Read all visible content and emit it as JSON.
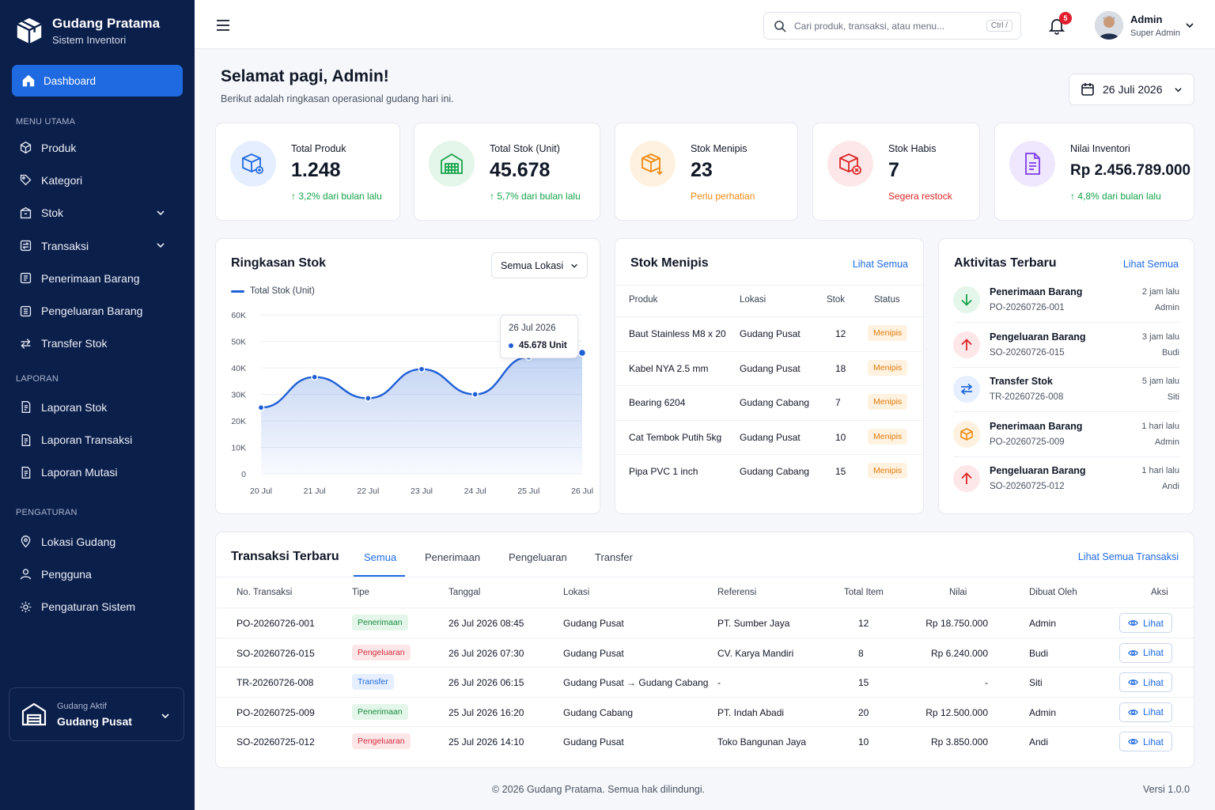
{
  "brand": {
    "title": "Gudang Pratama",
    "subtitle": "Sistem Inventori"
  },
  "sidebar": {
    "dashboard": "Dashboard",
    "sections": {
      "main": "MENU UTAMA",
      "reports": "LAPORAN",
      "settings": "PENGATURAN"
    },
    "main_items": [
      {
        "label": "Produk",
        "icon": "box-icon"
      },
      {
        "label": "Kategori",
        "icon": "tag-icon"
      },
      {
        "label": "Stok",
        "icon": "stock-icon"
      },
      {
        "label": "Transaksi",
        "icon": "transaction-icon"
      },
      {
        "label": "Penerimaan Barang",
        "icon": "inbound-icon"
      },
      {
        "label": "Pengeluaran Barang",
        "icon": "outbound-icon"
      },
      {
        "label": "Transfer Stok",
        "icon": "transfer-icon"
      }
    ],
    "report_items": [
      "Laporan Stok",
      "Laporan Transaksi",
      "Laporan Mutasi"
    ],
    "setting_items": [
      "Lokasi Gudang",
      "Pengguna",
      "Pengaturan Sistem"
    ],
    "active_warehouse_label": "Gudang Aktif",
    "active_warehouse": "Gudang Pusat"
  },
  "topbar": {
    "search_placeholder": "Cari produk, transaksi, atau menu...",
    "search_shortcut": "Ctrl  /",
    "notification_count": "5",
    "user_name": "Admin",
    "user_role": "Super Admin"
  },
  "header": {
    "greeting": "Selamat pagi, Admin!",
    "subtitle": "Berikut adalah ringkasan operasional gudang hari ini.",
    "date": "26 Juli 2026"
  },
  "kpis": [
    {
      "label": "Total Produk",
      "value": "1.248",
      "note": "↑ 3,2% dari bulan lalu",
      "tone": "green"
    },
    {
      "label": "Total Stok (Unit)",
      "value": "45.678",
      "note": "↑ 5,7% dari bulan lalu",
      "tone": "green"
    },
    {
      "label": "Stok Menipis",
      "value": "23",
      "note": "Perlu perhatian",
      "tone": "orange"
    },
    {
      "label": "Stok Habis",
      "value": "7",
      "note": "Segera restock",
      "tone": "red"
    },
    {
      "label": "Nilai Inventori",
      "value": "Rp 2.456.789.000",
      "note": "↑ 4,8% dari bulan lalu",
      "tone": "green"
    }
  ],
  "stock_summary": {
    "title": "Ringkasan Stok",
    "location_select": "Semua Lokasi",
    "legend": "Total Stok (Unit)",
    "tooltip_date": "26 Jul 2026",
    "tooltip_value": "45.678 Unit"
  },
  "chart_data": {
    "type": "area",
    "x": [
      "20 Jul",
      "21 Jul",
      "22 Jul",
      "23 Jul",
      "24 Jul",
      "25 Jul",
      "26 Jul"
    ],
    "series": [
      {
        "name": "Total Stok (Unit)",
        "values": [
          25000,
          36500,
          28500,
          39500,
          30000,
          44000,
          45678
        ]
      }
    ],
    "yticks": [
      "0",
      "10K",
      "20K",
      "30K",
      "40K",
      "50K",
      "60K"
    ],
    "ylim": [
      0,
      60000
    ],
    "color": "#1f5fd6"
  },
  "low_stock": {
    "title": "Stok Menipis",
    "link": "Lihat Semua",
    "headers": [
      "Produk",
      "Lokasi",
      "Stok",
      "Status"
    ],
    "rows": [
      {
        "product": "Baut Stainless M8 x 20",
        "location": "Gudang Pusat",
        "stock": "12",
        "status": "Menipis"
      },
      {
        "product": "Kabel NYA 2.5 mm",
        "location": "Gudang Pusat",
        "stock": "18",
        "status": "Menipis"
      },
      {
        "product": "Bearing 6204",
        "location": "Gudang Cabang",
        "stock": "7",
        "status": "Menipis"
      },
      {
        "product": "Cat Tembok Putih 5kg",
        "location": "Gudang Pusat",
        "stock": "10",
        "status": "Menipis"
      },
      {
        "product": "Pipa PVC 1 inch",
        "location": "Gudang Cabang",
        "stock": "15",
        "status": "Menipis"
      }
    ]
  },
  "activity": {
    "title": "Aktivitas Terbaru",
    "link": "Lihat Semua",
    "items": [
      {
        "title": "Penerimaan Barang",
        "ref": "PO-20260726-001",
        "time": "2 jam lalu",
        "user": "Admin",
        "kind": "in"
      },
      {
        "title": "Pengeluaran Barang",
        "ref": "SO-20260726-015",
        "time": "3 jam lalu",
        "user": "Budi",
        "kind": "out"
      },
      {
        "title": "Transfer Stok",
        "ref": "TR-20260726-008",
        "time": "5 jam lalu",
        "user": "Siti",
        "kind": "transfer"
      },
      {
        "title": "Penerimaan Barang",
        "ref": "PO-20260725-009",
        "time": "1 hari lalu",
        "user": "Admin",
        "kind": "box"
      },
      {
        "title": "Pengeluaran Barang",
        "ref": "SO-20260725-012",
        "time": "1 hari lalu",
        "user": "Andi",
        "kind": "out"
      }
    ]
  },
  "transactions": {
    "title": "Transaksi Terbaru",
    "tabs": [
      "Semua",
      "Penerimaan",
      "Pengeluaran",
      "Transfer"
    ],
    "link": "Lihat Semua Transaksi",
    "headers": [
      "No. Transaksi",
      "Tipe",
      "Tanggal",
      "Lokasi",
      "Referensi",
      "Total Item",
      "Nilai",
      "Dibuat Oleh",
      "Aksi"
    ],
    "view_label": "Lihat",
    "rows": [
      {
        "no": "PO-20260726-001",
        "type": "Penerimaan",
        "tone": "green",
        "date": "26 Jul 2026 08:45",
        "location": "Gudang Pusat",
        "ref": "PT. Sumber Jaya",
        "items": "12",
        "value": "Rp 18.750.000",
        "by": "Admin"
      },
      {
        "no": "SO-20260726-015",
        "type": "Pengeluaran",
        "tone": "red",
        "date": "26 Jul 2026 07:30",
        "location": "Gudang Pusat",
        "ref": "CV. Karya Mandiri",
        "items": "8",
        "value": "Rp 6.240.000",
        "by": "Budi"
      },
      {
        "no": "TR-20260726-008",
        "type": "Transfer",
        "tone": "blue",
        "date": "26 Jul 2026 06:15",
        "location": "Gudang Pusat → Gudang Cabang",
        "ref": "-",
        "items": "15",
        "value": "-",
        "by": "Siti"
      },
      {
        "no": "PO-20260725-009",
        "type": "Penerimaan",
        "tone": "green",
        "date": "25 Jul 2026 16:20",
        "location": "Gudang Cabang",
        "ref": "PT. Indah Abadi",
        "items": "20",
        "value": "Rp 12.500.000",
        "by": "Admin"
      },
      {
        "no": "SO-20260725-012",
        "type": "Pengeluaran",
        "tone": "red",
        "date": "25 Jul 2026 14:10",
        "location": "Gudang Pusat",
        "ref": "Toko Bangunan Jaya",
        "items": "10",
        "value": "Rp 3.850.000",
        "by": "Andi"
      }
    ]
  },
  "footer": {
    "copyright": "© 2026 Gudang Pratama. Semua hak dilindungi.",
    "version": "Versi 1.0.0"
  }
}
